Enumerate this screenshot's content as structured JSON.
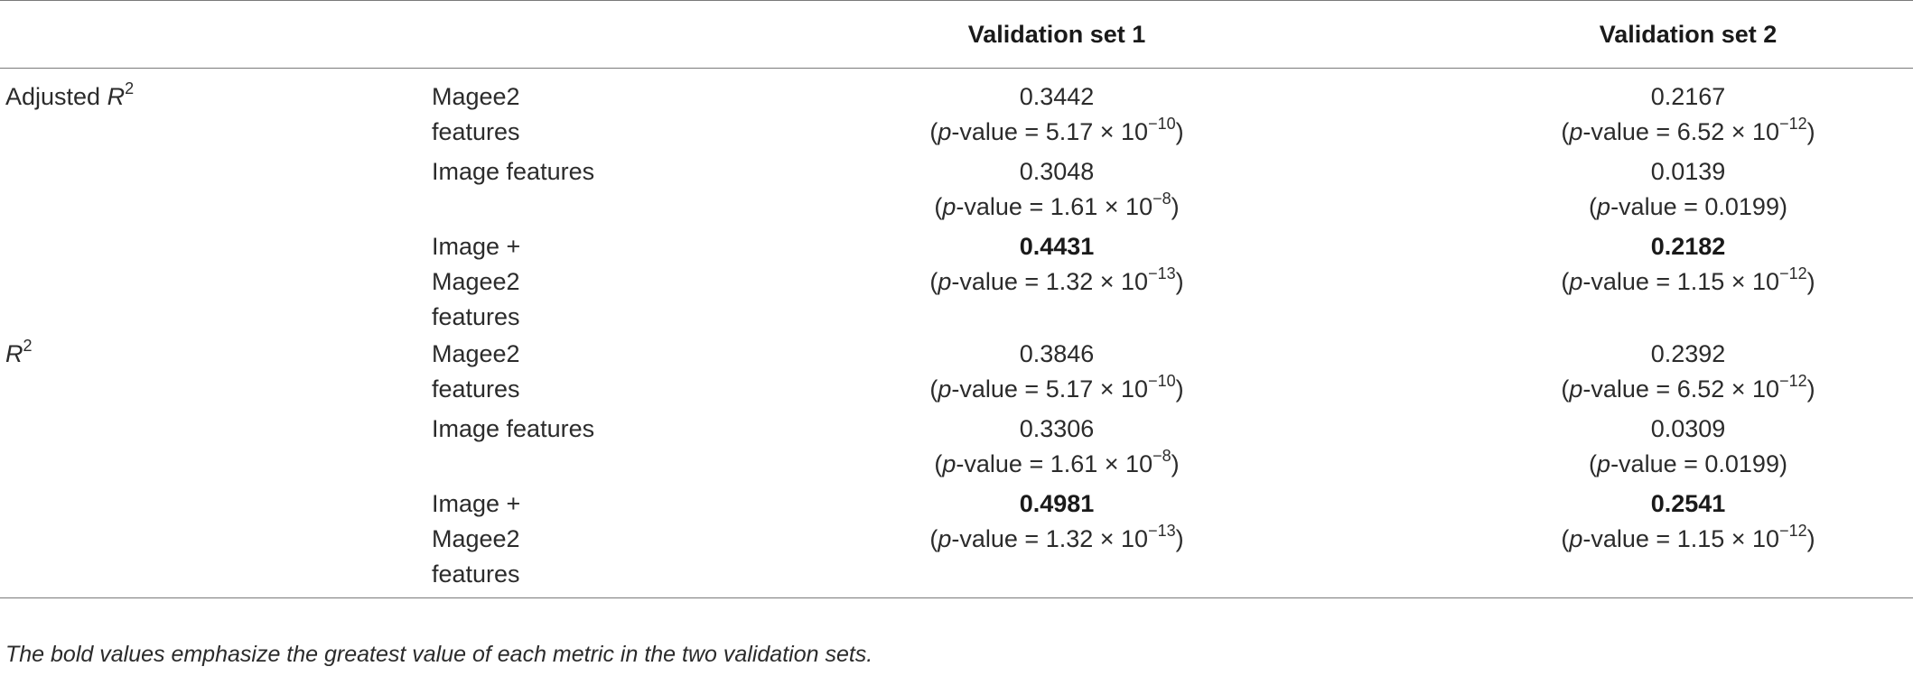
{
  "header": {
    "col1": "",
    "col2": "",
    "col3": "Validation set 1",
    "col4": "Validation set 2"
  },
  "groups": [
    {
      "metric_base": "Adjusted R",
      "metric_sup": "2",
      "rows": [
        {
          "feature_lines": [
            "Magee2",
            "features"
          ],
          "v1": {
            "value": "0.3442",
            "bold": false,
            "p_mant": "5.17",
            "p_exp": "−10",
            "p_plain": ""
          },
          "v2": {
            "value": "0.2167",
            "bold": false,
            "p_mant": "6.52",
            "p_exp": "−12",
            "p_plain": ""
          }
        },
        {
          "feature_lines": [
            "Image features"
          ],
          "v1": {
            "value": "0.3048",
            "bold": false,
            "p_mant": "1.61",
            "p_exp": "−8",
            "p_plain": ""
          },
          "v2": {
            "value": "0.0139",
            "bold": false,
            "p_mant": "",
            "p_exp": "",
            "p_plain": "0.0199"
          }
        },
        {
          "feature_lines": [
            "Image +",
            "Magee2",
            "features"
          ],
          "v1": {
            "value": "0.4431",
            "bold": true,
            "p_mant": "1.32",
            "p_exp": "−13",
            "p_plain": ""
          },
          "v2": {
            "value": "0.2182",
            "bold": true,
            "p_mant": "1.15",
            "p_exp": "−12",
            "p_plain": ""
          }
        }
      ]
    },
    {
      "metric_base": "R",
      "metric_sup": "2",
      "rows": [
        {
          "feature_lines": [
            "Magee2",
            "features"
          ],
          "v1": {
            "value": "0.3846",
            "bold": false,
            "p_mant": "5.17",
            "p_exp": "−10",
            "p_plain": ""
          },
          "v2": {
            "value": "0.2392",
            "bold": false,
            "p_mant": "6.52",
            "p_exp": "−12",
            "p_plain": ""
          }
        },
        {
          "feature_lines": [
            "Image features"
          ],
          "v1": {
            "value": "0.3306",
            "bold": false,
            "p_mant": "1.61",
            "p_exp": "−8",
            "p_plain": ""
          },
          "v2": {
            "value": "0.0309",
            "bold": false,
            "p_mant": "",
            "p_exp": "",
            "p_plain": "0.0199"
          }
        },
        {
          "feature_lines": [
            "Image +",
            "Magee2",
            "features"
          ],
          "v1": {
            "value": "0.4981",
            "bold": true,
            "p_mant": "1.32",
            "p_exp": "−13",
            "p_plain": ""
          },
          "v2": {
            "value": "0.2541",
            "bold": true,
            "p_mant": "1.15",
            "p_exp": "−12",
            "p_plain": ""
          }
        }
      ]
    }
  ],
  "p_prefix": "p",
  "p_label": "-value = ",
  "times_ten": " × 10",
  "footnote": "The bold values emphasize the greatest value of each metric in the two validation sets."
}
